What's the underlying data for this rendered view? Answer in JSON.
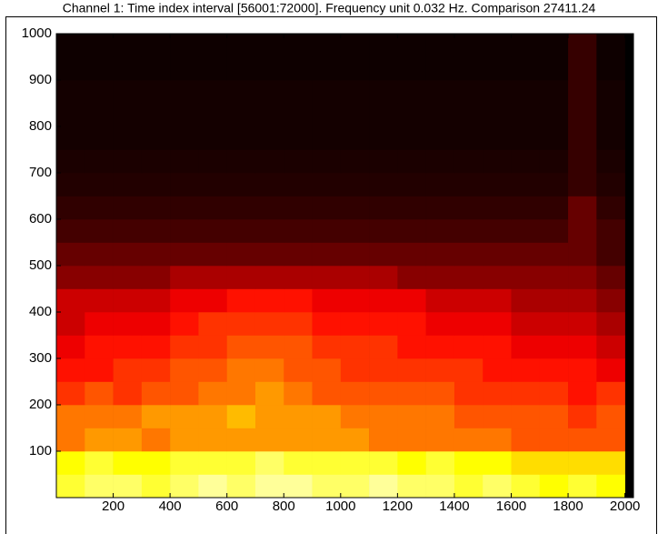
{
  "chart_data": {
    "type": "heatmap",
    "title": "Channel 1: Time index interval [56001:72000]. Frequency unit 0.032 Hz. Comparison 27411.24",
    "colormap": "hot",
    "xlim": [
      0,
      2030
    ],
    "ylim": [
      0,
      1000
    ],
    "xticks": [
      200,
      400,
      600,
      800,
      1000,
      1200,
      1400,
      1600,
      1800,
      2000
    ],
    "yticks": [
      100,
      200,
      300,
      400,
      500,
      600,
      700,
      800,
      900,
      1000
    ],
    "x_bins": [
      0,
      100,
      200,
      300,
      400,
      500,
      600,
      700,
      800,
      900,
      1000,
      1100,
      1200,
      1300,
      1400,
      1500,
      1600,
      1700,
      1800,
      1900,
      2000
    ],
    "y_bins": [
      0,
      50,
      100,
      150,
      200,
      250,
      300,
      350,
      400,
      450,
      500,
      550,
      600,
      650,
      700,
      750,
      800,
      850,
      900,
      950,
      1000
    ],
    "z": [
      [
        0.8,
        0.85,
        0.85,
        0.8,
        0.85,
        0.9,
        0.85,
        0.9,
        0.9,
        0.85,
        0.85,
        0.9,
        0.85,
        0.85,
        0.8,
        0.85,
        0.8,
        0.75,
        0.8,
        0.75
      ],
      [
        0.75,
        0.8,
        0.75,
        0.75,
        0.8,
        0.8,
        0.8,
        0.85,
        0.8,
        0.8,
        0.8,
        0.8,
        0.75,
        0.8,
        0.75,
        0.75,
        0.7,
        0.7,
        0.7,
        0.7
      ],
      [
        0.55,
        0.6,
        0.6,
        0.55,
        0.6,
        0.6,
        0.6,
        0.6,
        0.6,
        0.6,
        0.6,
        0.55,
        0.55,
        0.55,
        0.55,
        0.55,
        0.5,
        0.5,
        0.5,
        0.5
      ],
      [
        0.55,
        0.55,
        0.55,
        0.6,
        0.6,
        0.6,
        0.65,
        0.6,
        0.6,
        0.6,
        0.55,
        0.55,
        0.55,
        0.55,
        0.5,
        0.5,
        0.5,
        0.5,
        0.45,
        0.5
      ],
      [
        0.45,
        0.5,
        0.45,
        0.5,
        0.5,
        0.55,
        0.55,
        0.6,
        0.55,
        0.5,
        0.5,
        0.5,
        0.5,
        0.5,
        0.45,
        0.45,
        0.45,
        0.45,
        0.4,
        0.45
      ],
      [
        0.4,
        0.4,
        0.45,
        0.45,
        0.5,
        0.5,
        0.55,
        0.55,
        0.5,
        0.5,
        0.45,
        0.45,
        0.45,
        0.45,
        0.45,
        0.4,
        0.4,
        0.4,
        0.4,
        0.35
      ],
      [
        0.35,
        0.4,
        0.4,
        0.4,
        0.45,
        0.45,
        0.5,
        0.5,
        0.5,
        0.45,
        0.45,
        0.45,
        0.4,
        0.4,
        0.4,
        0.4,
        0.35,
        0.35,
        0.35,
        0.3
      ],
      [
        0.3,
        0.35,
        0.35,
        0.35,
        0.4,
        0.45,
        0.45,
        0.45,
        0.45,
        0.4,
        0.4,
        0.4,
        0.4,
        0.35,
        0.35,
        0.35,
        0.3,
        0.3,
        0.3,
        0.25
      ],
      [
        0.3,
        0.3,
        0.3,
        0.3,
        0.35,
        0.35,
        0.4,
        0.4,
        0.4,
        0.35,
        0.35,
        0.35,
        0.35,
        0.3,
        0.3,
        0.3,
        0.25,
        0.25,
        0.25,
        0.2
      ],
      [
        0.2,
        0.2,
        0.2,
        0.2,
        0.25,
        0.25,
        0.25,
        0.25,
        0.25,
        0.25,
        0.25,
        0.25,
        0.2,
        0.2,
        0.2,
        0.2,
        0.2,
        0.2,
        0.2,
        0.15
      ],
      [
        0.15,
        0.15,
        0.15,
        0.15,
        0.15,
        0.15,
        0.15,
        0.15,
        0.15,
        0.15,
        0.15,
        0.15,
        0.15,
        0.15,
        0.15,
        0.15,
        0.15,
        0.15,
        0.15,
        0.1
      ],
      [
        0.1,
        0.1,
        0.1,
        0.1,
        0.1,
        0.1,
        0.1,
        0.1,
        0.1,
        0.1,
        0.1,
        0.1,
        0.1,
        0.1,
        0.1,
        0.1,
        0.1,
        0.1,
        0.15,
        0.1
      ],
      [
        0.07,
        0.07,
        0.07,
        0.07,
        0.07,
        0.07,
        0.07,
        0.07,
        0.07,
        0.07,
        0.07,
        0.07,
        0.07,
        0.07,
        0.07,
        0.07,
        0.07,
        0.07,
        0.15,
        0.07
      ],
      [
        0.05,
        0.05,
        0.05,
        0.05,
        0.05,
        0.05,
        0.05,
        0.05,
        0.05,
        0.05,
        0.05,
        0.05,
        0.05,
        0.05,
        0.05,
        0.05,
        0.05,
        0.05,
        0.08,
        0.05
      ],
      [
        0.04,
        0.04,
        0.04,
        0.04,
        0.04,
        0.04,
        0.04,
        0.04,
        0.04,
        0.04,
        0.04,
        0.04,
        0.04,
        0.04,
        0.04,
        0.04,
        0.04,
        0.04,
        0.08,
        0.04
      ],
      [
        0.03,
        0.03,
        0.03,
        0.03,
        0.03,
        0.03,
        0.03,
        0.03,
        0.03,
        0.03,
        0.03,
        0.03,
        0.03,
        0.03,
        0.03,
        0.03,
        0.03,
        0.03,
        0.08,
        0.03
      ],
      [
        0.03,
        0.03,
        0.03,
        0.03,
        0.03,
        0.03,
        0.03,
        0.03,
        0.03,
        0.03,
        0.03,
        0.03,
        0.03,
        0.03,
        0.03,
        0.03,
        0.03,
        0.03,
        0.08,
        0.03
      ],
      [
        0.03,
        0.03,
        0.03,
        0.03,
        0.03,
        0.03,
        0.03,
        0.03,
        0.03,
        0.03,
        0.03,
        0.03,
        0.03,
        0.03,
        0.03,
        0.03,
        0.03,
        0.03,
        0.08,
        0.03
      ],
      [
        0.02,
        0.02,
        0.02,
        0.02,
        0.02,
        0.02,
        0.02,
        0.02,
        0.02,
        0.02,
        0.02,
        0.02,
        0.02,
        0.02,
        0.02,
        0.02,
        0.02,
        0.02,
        0.08,
        0.02
      ],
      [
        0.02,
        0.02,
        0.02,
        0.02,
        0.02,
        0.02,
        0.02,
        0.02,
        0.02,
        0.02,
        0.02,
        0.02,
        0.02,
        0.02,
        0.02,
        0.02,
        0.02,
        0.02,
        0.08,
        0.02
      ]
    ]
  }
}
